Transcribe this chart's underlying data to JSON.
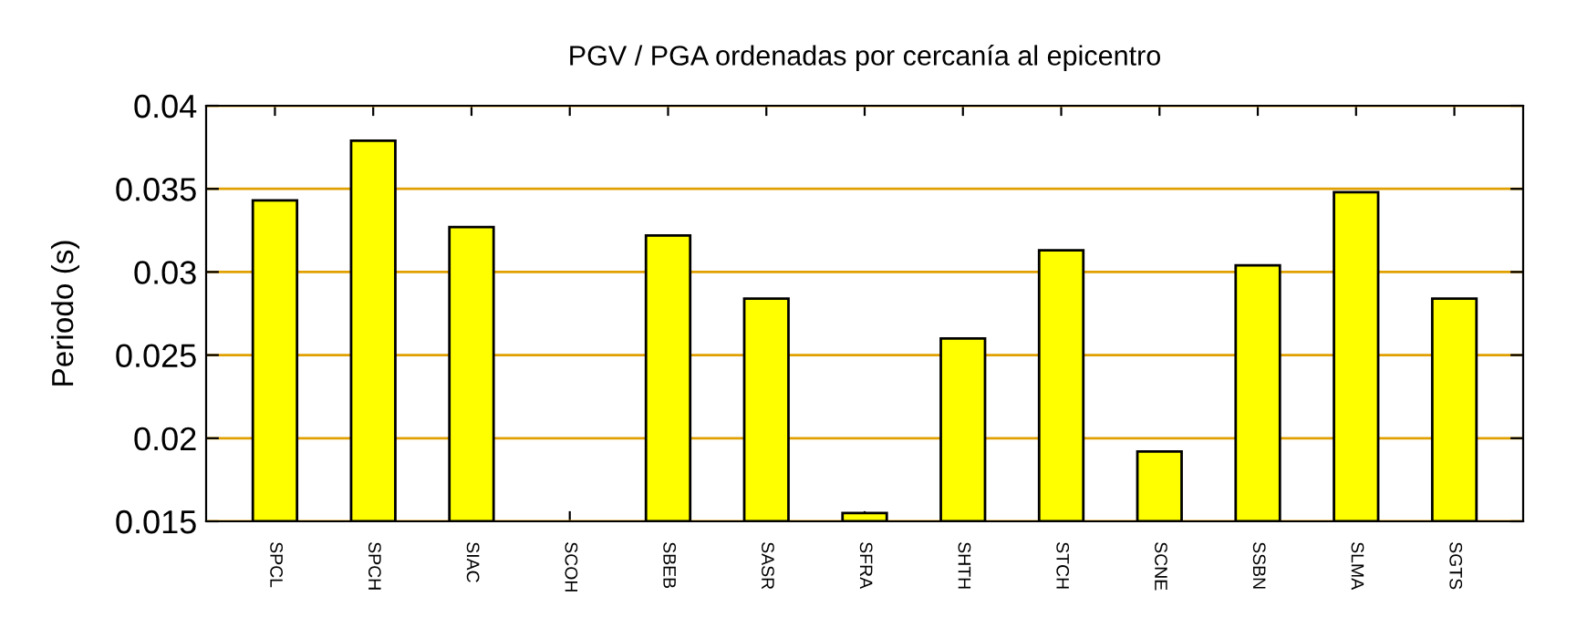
{
  "chart_data": {
    "type": "bar",
    "title": "PGV / PGA ordenadas por cercanía al epicentro",
    "ylabel": "Periodo (s)",
    "categories": [
      "SPCL",
      "SPCH",
      "SIAC",
      "SCOH",
      "SBEB",
      "SASR",
      "SFRA",
      "SHTH",
      "STCH",
      "SCNE",
      "SSBN",
      "SLMA",
      "SGTS"
    ],
    "values": [
      0.0343,
      0.0379,
      0.0327,
      null,
      0.0322,
      0.0284,
      0.0155,
      0.026,
      0.0313,
      0.0192,
      0.0304,
      0.0348,
      0.0284
    ],
    "color": "#ffff00",
    "ylim": [
      0.015,
      0.04
    ],
    "yticks": [
      0.015,
      0.02,
      0.025,
      0.03,
      0.035,
      0.04
    ],
    "grid": "y"
  }
}
